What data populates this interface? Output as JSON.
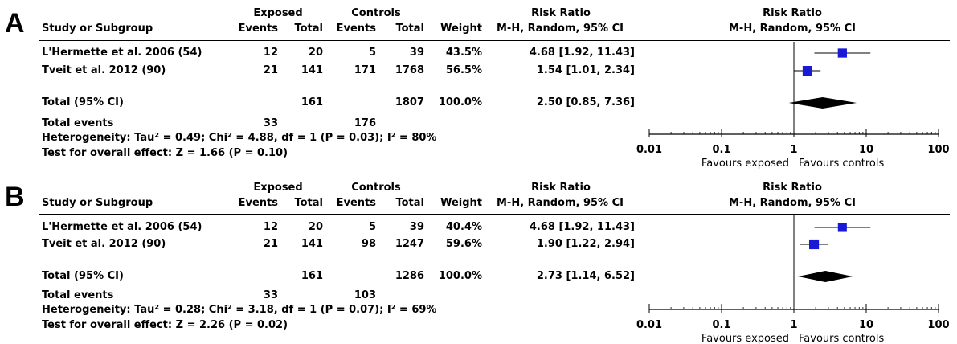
{
  "header": {
    "exposed": "Exposed",
    "controls": "Controls",
    "risk_ratio": "Risk Ratio",
    "study_or_subgroup": "Study or Subgroup",
    "events": "Events",
    "total": "Total",
    "weight": "Weight",
    "method": "M-H, Random, 95% CI"
  },
  "panels": [
    {
      "label": "A",
      "studies": [
        {
          "name": "L'Hermette et al. 2006 (54)",
          "exp_events": "12",
          "exp_total": "20",
          "ctrl_events": "5",
          "ctrl_total": "39",
          "weight": "43.5%",
          "rr": "4.68 [1.92, 11.43]"
        },
        {
          "name": "Tveit et al. 2012 (90)",
          "exp_events": "21",
          "exp_total": "141",
          "ctrl_events": "171",
          "ctrl_total": "1768",
          "weight": "56.5%",
          "rr": "1.54 [1.01, 2.34]"
        }
      ],
      "total": {
        "label": "Total (95% CI)",
        "exp_total": "161",
        "ctrl_total": "1807",
        "weight": "100.0%",
        "rr": "2.50 [0.85, 7.36]"
      },
      "total_events": {
        "label": "Total events",
        "exp": "33",
        "ctrl": "176"
      },
      "heterogeneity": "Heterogeneity: Tau² = 0.49; Chi² = 4.88, df = 1 (P = 0.03); I² = 80%",
      "overall": "Test for overall effect: Z = 1.66 (P = 0.10)"
    },
    {
      "label": "B",
      "studies": [
        {
          "name": "L'Hermette et al. 2006 (54)",
          "exp_events": "12",
          "exp_total": "20",
          "ctrl_events": "5",
          "ctrl_total": "39",
          "weight": "40.4%",
          "rr": "4.68 [1.92, 11.43]"
        },
        {
          "name": "Tveit et al. 2012 (90)",
          "exp_events": "21",
          "exp_total": "141",
          "ctrl_events": "98",
          "ctrl_total": "1247",
          "weight": "59.6%",
          "rr": "1.90 [1.22, 2.94]"
        }
      ],
      "total": {
        "label": "Total (95% CI)",
        "exp_total": "161",
        "ctrl_total": "1286",
        "weight": "100.0%",
        "rr": "2.73 [1.14, 6.52]"
      },
      "total_events": {
        "label": "Total events",
        "exp": "33",
        "ctrl": "103"
      },
      "heterogeneity": "Heterogeneity: Tau² = 0.28; Chi² = 3.18, df = 1 (P = 0.07); I² = 69%",
      "overall": "Test for overall effect: Z = 2.26 (P = 0.02)"
    }
  ],
  "chart_data": [
    {
      "type": "scatter",
      "subtype": "forest-plot",
      "title": "Risk Ratio",
      "subtitle": "M-H, Random, 95% CI",
      "xscale": "log",
      "xlim": [
        0.01,
        100
      ],
      "xticks": [
        "0.01",
        "0.1",
        "1",
        "10",
        "100"
      ],
      "xtick_values": [
        0.01,
        0.1,
        1,
        10,
        100
      ],
      "favours_left": "Favours exposed",
      "favours_right": "Favours controls",
      "studies": [
        {
          "rr": 4.68,
          "lo": 1.92,
          "hi": 11.43,
          "weight": 43.5
        },
        {
          "rr": 1.54,
          "lo": 1.01,
          "hi": 2.34,
          "weight": 56.5
        }
      ],
      "total": {
        "rr": 2.5,
        "lo": 0.85,
        "hi": 7.36
      }
    },
    {
      "type": "scatter",
      "subtype": "forest-plot",
      "title": "Risk Ratio",
      "subtitle": "M-H, Random, 95% CI",
      "xscale": "log",
      "xlim": [
        0.01,
        100
      ],
      "xticks": [
        "0.01",
        "0.1",
        "1",
        "10",
        "100"
      ],
      "xtick_values": [
        0.01,
        0.1,
        1,
        10,
        100
      ],
      "favours_left": "Favours exposed",
      "favours_right": "Favours controls",
      "studies": [
        {
          "rr": 4.68,
          "lo": 1.92,
          "hi": 11.43,
          "weight": 40.4
        },
        {
          "rr": 1.9,
          "lo": 1.22,
          "hi": 2.94,
          "weight": 59.6
        }
      ],
      "total": {
        "rr": 2.73,
        "lo": 1.14,
        "hi": 6.52
      }
    }
  ]
}
